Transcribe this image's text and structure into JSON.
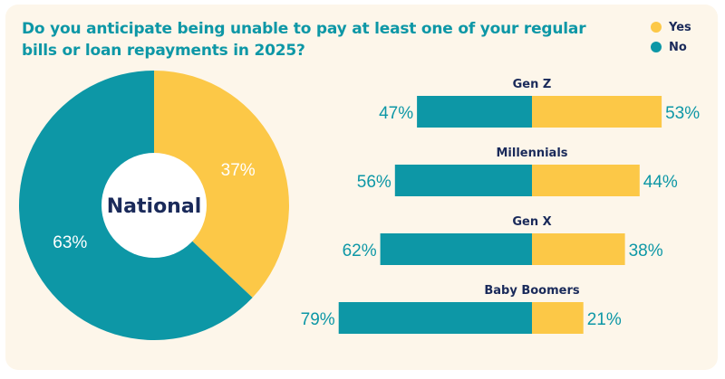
{
  "title": "Do you anticipate being unable to pay at least one of your regular bills or loan repayments in 2025?",
  "legend": [
    {
      "label": "Yes",
      "color": "#fcc847"
    },
    {
      "label": "No",
      "color": "#0d97a6"
    }
  ],
  "colors": {
    "yes": "#fcc847",
    "no": "#0d97a6",
    "text": "#1a2a5a",
    "background": "#fdf6ea"
  },
  "chart_data": [
    {
      "type": "pie",
      "title": "National",
      "labels": [
        "Yes",
        "No"
      ],
      "values": [
        37,
        63
      ],
      "value_labels": [
        "37%",
        "63%"
      ]
    },
    {
      "type": "bar",
      "orientation": "horizontal-diverging",
      "categories": [
        "Gen Z",
        "Millennials",
        "Gen X",
        "Baby Boomers"
      ],
      "series": [
        {
          "name": "No",
          "values": [
            47,
            56,
            62,
            79
          ],
          "labels": [
            "47%",
            "56%",
            "62%",
            "79%"
          ]
        },
        {
          "name": "Yes",
          "values": [
            53,
            44,
            38,
            21
          ],
          "labels": [
            "53%",
            "44%",
            "38%",
            "21%"
          ]
        }
      ]
    }
  ]
}
